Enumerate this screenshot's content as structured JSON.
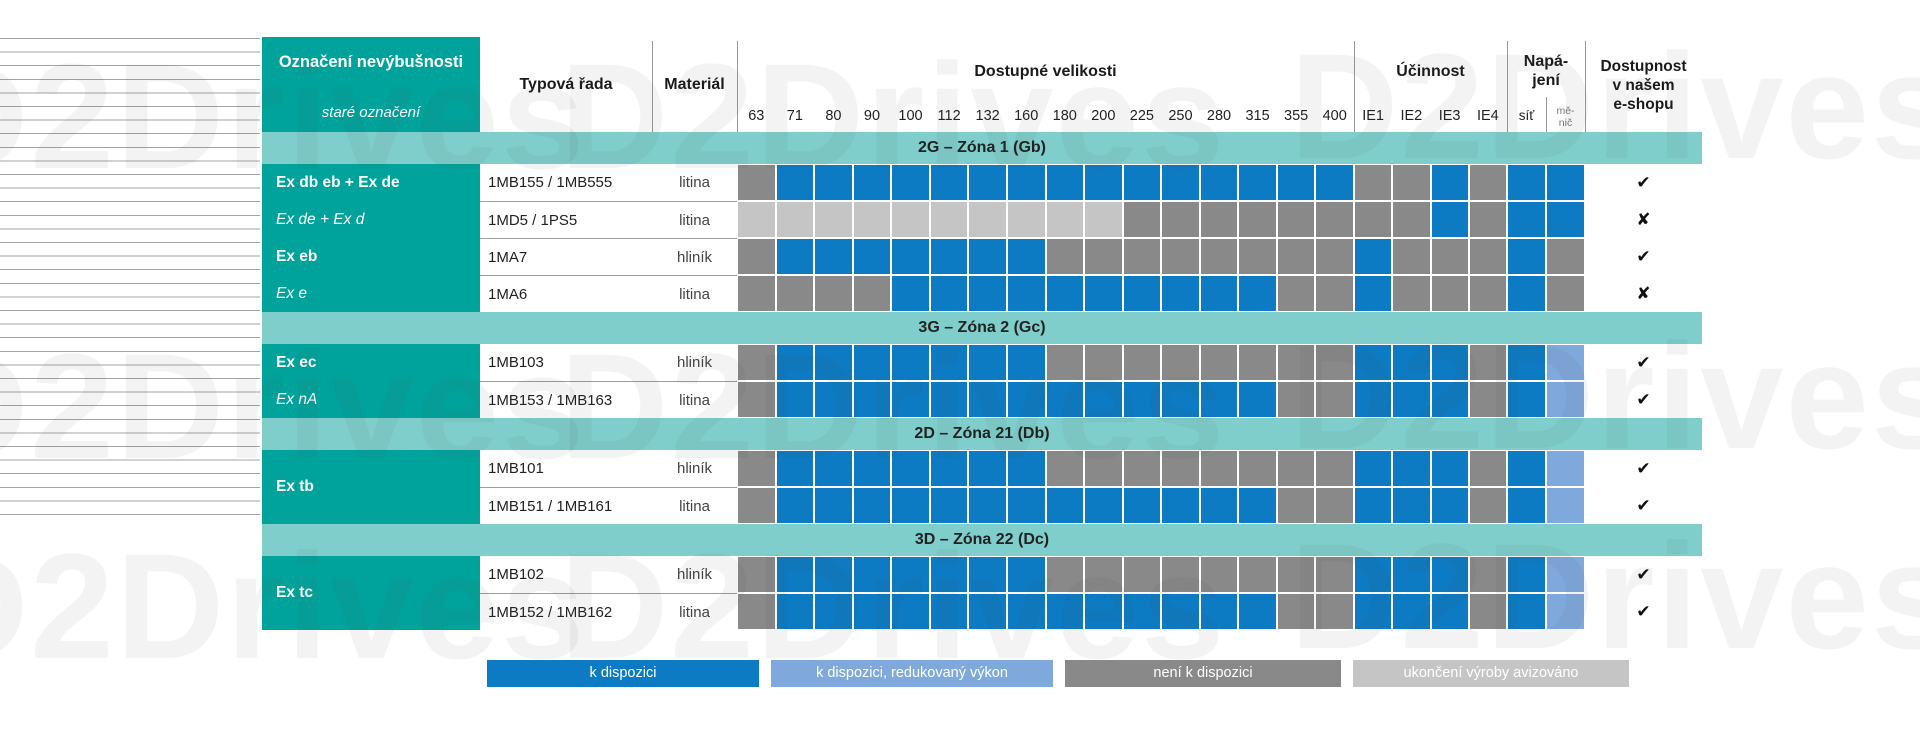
{
  "watermark": "D2Drives",
  "colors": {
    "teal": "#00a39b",
    "band": "#7fcecb",
    "available": "#0d7bc3",
    "reduced": "#7fa9dc",
    "unavailable": "#898989",
    "phaseout": "#c5c5c5"
  },
  "marks": {
    "yes": "✔",
    "no": "✘"
  },
  "header": {
    "col1_title": "Označení nevýbušnosti",
    "col1_subtitle": "staré označení",
    "col2": "Typová řada",
    "col3": "Materiál",
    "sizes_title": "Dostupné velikosti",
    "sizes": [
      "63",
      "71",
      "80",
      "90",
      "100",
      "112",
      "132",
      "160",
      "180",
      "200",
      "225",
      "250",
      "280",
      "315",
      "355",
      "400"
    ],
    "efficiency_title": "Účinnost",
    "efficiency": [
      "IE1",
      "IE2",
      "IE3",
      "IE4"
    ],
    "power_title_line1": "Napá-",
    "power_title_line2": "jení",
    "power_net": "síť",
    "power_vfd_line1": "mě-",
    "power_vfd_line2": "nič",
    "availability_line1": "Dostupnost",
    "availability_line2": "v našem",
    "availability_line3": "e-shopu"
  },
  "sections": [
    {
      "band": "2G – Zóna 1 (Gb)",
      "rows": [
        {
          "designation": "Ex db eb + Ex de",
          "style": "bold",
          "series": "1MB155 / 1MB555",
          "material": "litina",
          "cells": "NAAAAAAAAAAAAAAANNANAA",
          "availability": "yes"
        },
        {
          "designation": "Ex de + Ex d",
          "style": "italic",
          "series": "1MD5 / 1PS5",
          "material": "litina",
          "cells": "PPPPPPPPPPNNNNNNNNANAA",
          "availability": "no"
        },
        {
          "designation": "Ex eb",
          "style": "bold",
          "series": "1MA7",
          "material": "hliník",
          "cells": "NAAAAAAANNNNNNNNANNNAN",
          "availability": "yes"
        },
        {
          "designation": "Ex e",
          "style": "italic",
          "series": "1MA6",
          "material": "litina",
          "cells": "NNNNAAAAAAAAAANNANNNAN",
          "availability": "no"
        }
      ]
    },
    {
      "band": "3G – Zóna 2 (Gc)",
      "rows": [
        {
          "designation": "Ex ec",
          "style": "bold",
          "series": "1MB103",
          "material": "hliník",
          "cells": "NAAAAAAANNNNNNNNAAANAR",
          "availability": "yes"
        },
        {
          "designation": "Ex nA",
          "style": "italic",
          "series": "1MB153 / 1MB163",
          "material": "litina",
          "cells": "NAAAAAAAAAAAAANNAAANAR",
          "availability": "yes"
        }
      ]
    },
    {
      "band": "2D – Zóna 21 (Db)",
      "designation_center": "Ex tb",
      "rows": [
        {
          "designation": "",
          "style": "bold",
          "series": "1MB101",
          "material": "hliník",
          "cells": "NAAAAAAANNNNNNNNAAANAR",
          "availability": "yes"
        },
        {
          "designation": "",
          "style": "bold",
          "series": "1MB151 / 1MB161",
          "material": "litina",
          "cells": "NAAAAAAAAAAAAANNAAANAR",
          "availability": "yes"
        }
      ]
    },
    {
      "band": "3D – Zóna 22 (Dc)",
      "designation_center": "Ex tc",
      "rows": [
        {
          "designation": "",
          "style": "bold",
          "series": "1MB102",
          "material": "hliník",
          "cells": "NAAAAAAANNNNNNNNAAANAR",
          "availability": "yes"
        },
        {
          "designation": "",
          "style": "bold",
          "series": "1MB152 / 1MB162",
          "material": "litina",
          "cells": "NAAAAAAAAAAAAANNAAANAR",
          "availability": "yes"
        }
      ]
    }
  ],
  "legend": {
    "items": [
      {
        "label": "k dispozici",
        "key": "available"
      },
      {
        "label": "k dispozici, redukovaný výkon",
        "key": "reduced"
      },
      {
        "label": "není k dispozici",
        "key": "unavailable"
      },
      {
        "label": "ukončení výroby avizováno",
        "key": "phaseout"
      }
    ]
  }
}
